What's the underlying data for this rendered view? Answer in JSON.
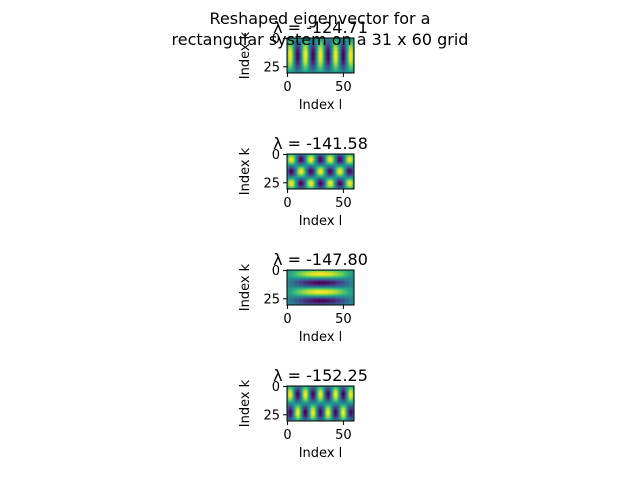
{
  "chart_data": {
    "type": "heatmap",
    "title_lines": [
      "Reshaped eigenvector for a",
      "rectangular system on a 31 x 60 grid"
    ],
    "colormap": "viridis",
    "grid_rows": 31,
    "grid_cols": 60,
    "panels": [
      {
        "title": "λ = -124.71",
        "mode": [
          1,
          9
        ],
        "xlabel": "Index l",
        "ylabel": "Index k",
        "xticks": [
          0,
          50
        ],
        "yticks": [
          0,
          25
        ]
      },
      {
        "title": "λ = -141.58",
        "mode": [
          3,
          7
        ],
        "xlabel": "Index l",
        "ylabel": "Index k",
        "xticks": [
          0,
          50
        ],
        "yticks": [
          0,
          25
        ]
      },
      {
        "title": "λ = -147.80",
        "mode": [
          4,
          1
        ],
        "xlabel": "Index l",
        "ylabel": "Index k",
        "xticks": [
          0,
          50
        ],
        "yticks": [
          0,
          25
        ]
      },
      {
        "title": "λ = -152.25",
        "mode": [
          2,
          9
        ],
        "xlabel": "Index l",
        "ylabel": "Index k",
        "xticks": [
          0,
          50
        ],
        "yticks": [
          0,
          25
        ]
      }
    ]
  }
}
